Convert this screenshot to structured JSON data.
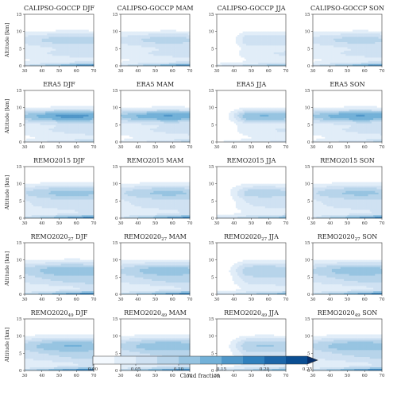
{
  "chart_data": {
    "type": "contour",
    "rows": [
      "CALIPSO-GOCCP",
      "ERA5",
      "REMO2015",
      "REMO2020_27",
      "REMO2020_49"
    ],
    "row_titles": [
      {
        "main": "CALIPSO-GOCCP",
        "sub": ""
      },
      {
        "main": "ERA5",
        "sub": ""
      },
      {
        "main": "REMO2015",
        "sub": ""
      },
      {
        "main": "REMO2020",
        "sub": "27"
      },
      {
        "main": "REMO2020",
        "sub": "49"
      }
    ],
    "seasons": [
      "DJF",
      "MAM",
      "JJA",
      "SON"
    ],
    "ylabel": "Altitude [km]",
    "xticks": [
      30,
      40,
      50,
      60,
      70
    ],
    "yticks": [
      0,
      5,
      10,
      15
    ],
    "xlim": [
      30,
      70
    ],
    "ylim": [
      0,
      15
    ],
    "colorbar": {
      "label": "Cloud fraction",
      "ticks": [
        "0.00",
        "0.05",
        "0.10",
        "0.15",
        "0.20",
        "0.25"
      ],
      "levels": [
        0,
        0.025,
        0.05,
        0.075,
        0.1,
        0.125,
        0.15,
        0.175,
        0.2,
        0.225,
        0.25
      ],
      "extend": "max",
      "colors": [
        "#f4f9fe",
        "#e1edf8",
        "#cfe1f2",
        "#b7d4ea",
        "#97c4e1",
        "#73b1d8",
        "#5097c9",
        "#3080bd",
        "#1c66a9",
        "#0b4e92",
        "#08306b"
      ]
    }
  }
}
